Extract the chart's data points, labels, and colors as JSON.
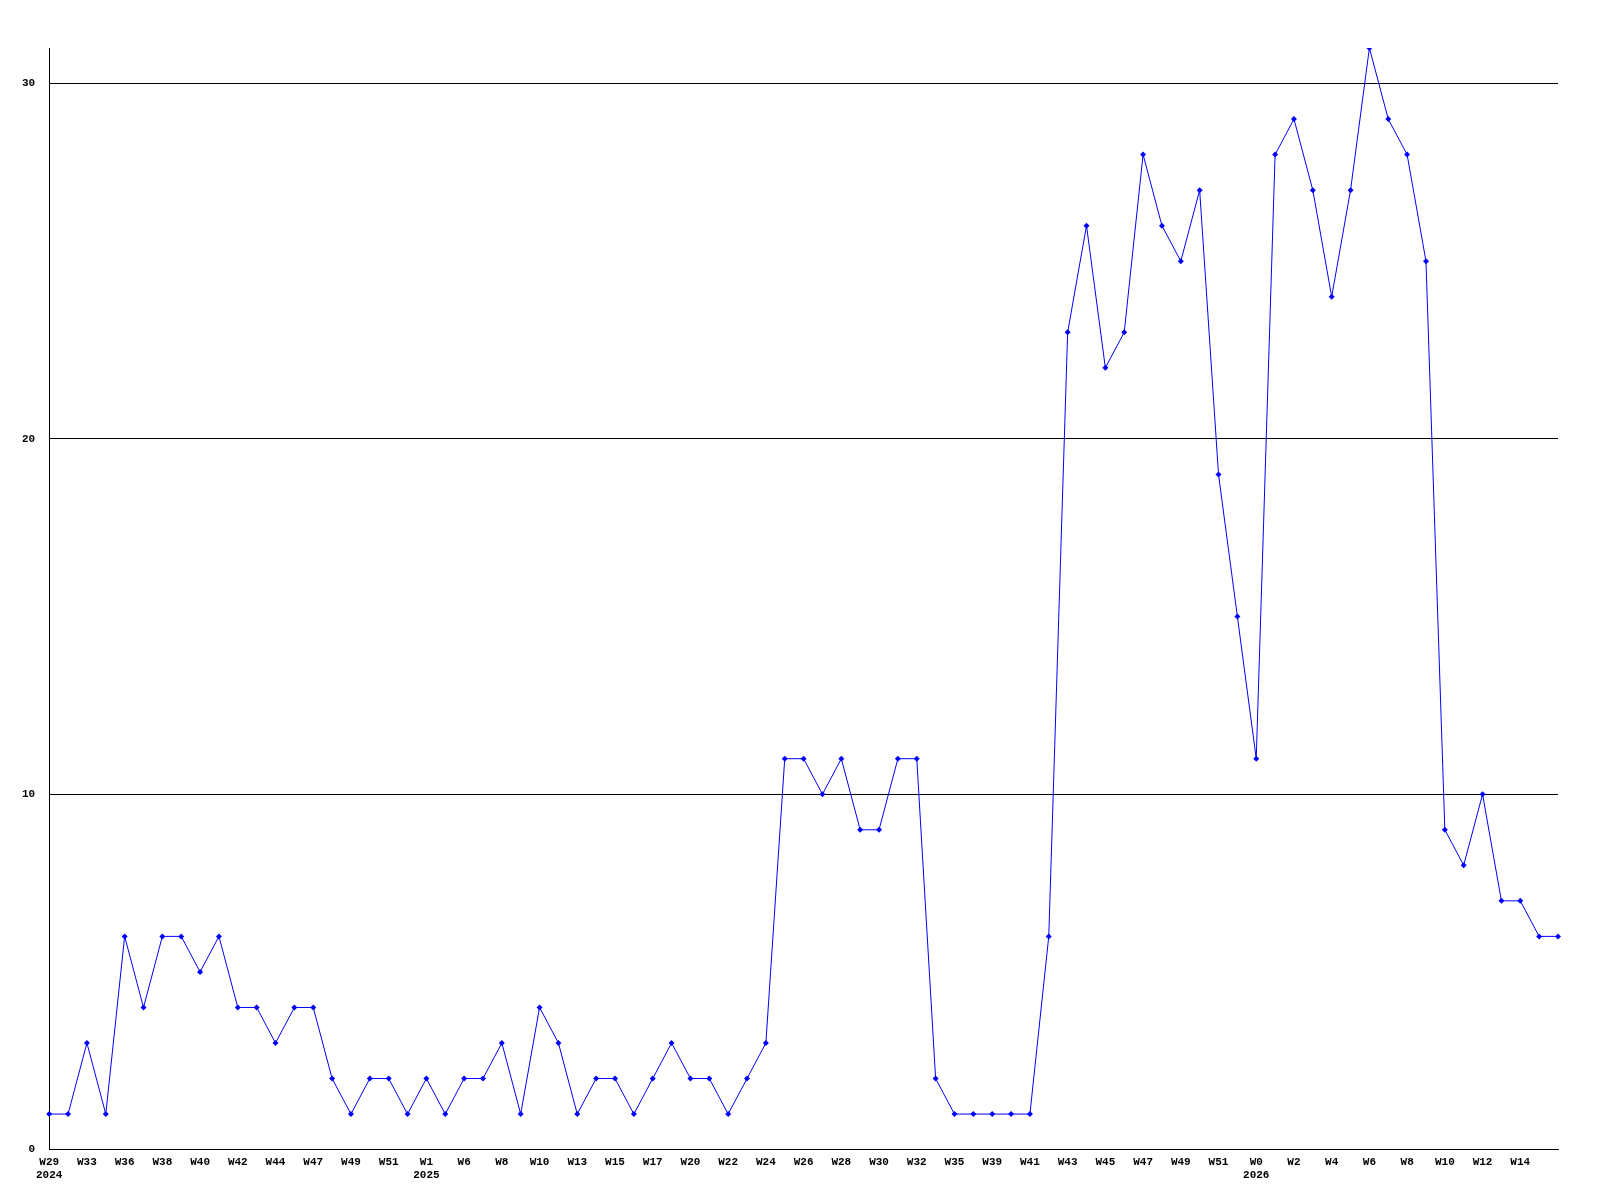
{
  "chart_data": {
    "type": "line",
    "categories": [
      "W29\n2024",
      null,
      "W33",
      null,
      "W36",
      null,
      "W38",
      null,
      "W40",
      null,
      "W42",
      null,
      "W44",
      null,
      "W47",
      null,
      "W49",
      null,
      "W51",
      null,
      "W1\n2025",
      null,
      "W6",
      null,
      "W8",
      null,
      "W10",
      null,
      "W13",
      null,
      "W15",
      null,
      "W17",
      null,
      "W20",
      null,
      "W22",
      null,
      "W24",
      null,
      "W26",
      null,
      "W28",
      null,
      "W30",
      null,
      "W32",
      null,
      "W35",
      null,
      "W39",
      null,
      "W41",
      null,
      "W43",
      null,
      "W45",
      null,
      "W47",
      null,
      "W49",
      null,
      "W51",
      null,
      "W0\n2026",
      null,
      "W2",
      null,
      "W4",
      null,
      "W6",
      null,
      "W8",
      null,
      "W10",
      null,
      "W12",
      null,
      "W14",
      null,
      null
    ],
    "series": [
      {
        "color": "#0000ff",
        "values": [
          1,
          1,
          3,
          1,
          6,
          4,
          6,
          6,
          5,
          6,
          4,
          4,
          3,
          4,
          4,
          2,
          1,
          2,
          2,
          1,
          2,
          1,
          2,
          2,
          3,
          1,
          4,
          3,
          1,
          2,
          2,
          1,
          2,
          3,
          2,
          2,
          1,
          2,
          3,
          11,
          11,
          10,
          11,
          9,
          9,
          11,
          11,
          2,
          1,
          1,
          1,
          1,
          1,
          6,
          23,
          26,
          22,
          23,
          28,
          26,
          25,
          27,
          19,
          15,
          11,
          28,
          29,
          27,
          24,
          27,
          31,
          29,
          28,
          25,
          9,
          8,
          10,
          7,
          7,
          6,
          6
        ]
      }
    ],
    "ylim": [
      0,
      31
    ],
    "yticks": [
      0,
      10,
      20,
      30
    ],
    "grid": "y",
    "legend": false,
    "marker": "diamond",
    "line_style": "solid"
  }
}
